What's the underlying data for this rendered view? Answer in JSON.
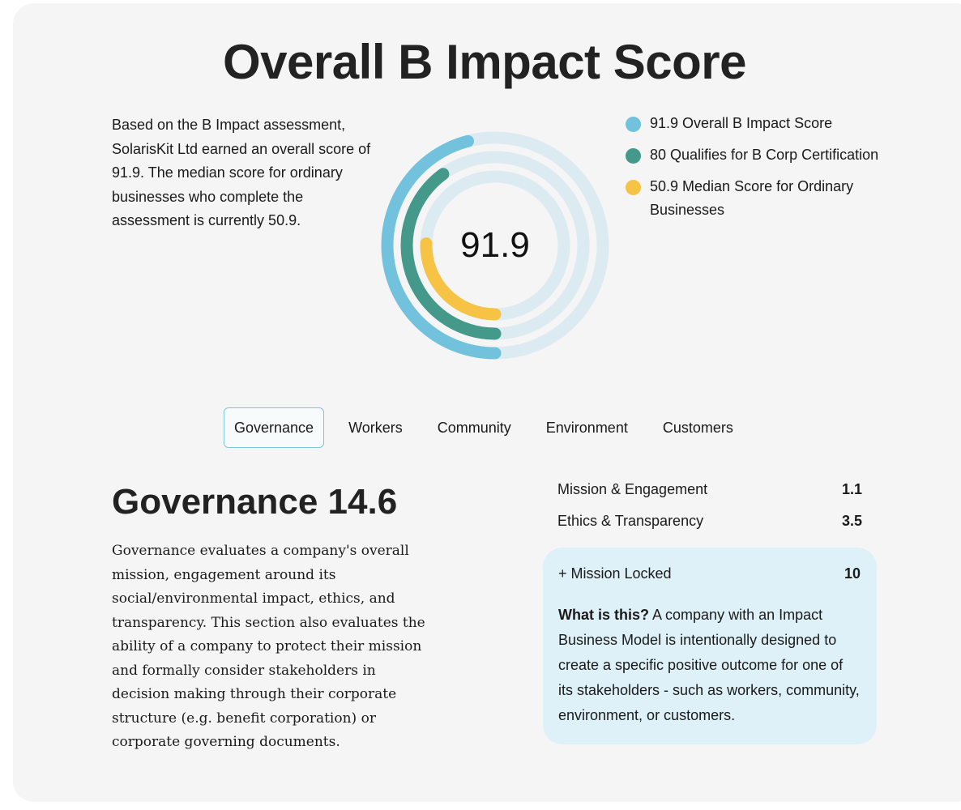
{
  "page": {
    "title": "Overall B Impact Score"
  },
  "intro": {
    "text": "Based on the B Impact assessment, SolarisKit Ltd earned an overall score of 91.9. The median score for ordinary businesses who complete the assessment is currently 50.9."
  },
  "score": {
    "value": "91.9"
  },
  "chart_data": {
    "type": "radial-bar",
    "scale_max": 200,
    "series": [
      {
        "name": "91.9 Overall B Impact Score",
        "value": 91.9,
        "color": "#72c2de"
      },
      {
        "name": "80 Qualifies for B Corp Certification",
        "value": 80,
        "color": "#45998a"
      },
      {
        "name": "50.9 Median Score for Ordinary Businesses",
        "value": 50.9,
        "color": "#f6c344"
      }
    ],
    "track_color": "#dcebf1"
  },
  "legend": {
    "items": [
      {
        "label": "91.9 Overall B Impact Score",
        "color": "#72c2de"
      },
      {
        "label": "80 Qualifies for B Corp Certification",
        "color": "#45998a"
      },
      {
        "label": "50.9 Median Score for Ordinary Businesses",
        "color": "#f6c344"
      }
    ]
  },
  "tabs": {
    "active": "Governance",
    "items": [
      {
        "label": "Governance"
      },
      {
        "label": "Workers"
      },
      {
        "label": "Community"
      },
      {
        "label": "Environment"
      },
      {
        "label": "Customers"
      }
    ]
  },
  "section": {
    "title": "Governance 14.6",
    "description": "Governance evaluates a company's overall mission, engagement around its social/environmental impact, ethics, and transparency. This section also evaluates the ability of a company to protect their mission and formally consider stakeholders in decision making through their corporate structure (e.g. benefit corporation) or corporate governing documents.",
    "metrics": [
      {
        "label": "Mission & Engagement",
        "value": "1.1"
      },
      {
        "label": "Ethics & Transparency",
        "value": "3.5"
      }
    ],
    "mission_locked": {
      "label": "+ Mission Locked",
      "value": "10",
      "question": "What is this?",
      "explanation": "A company with an Impact Business Model is intentionally designed to create a specific positive outcome for one of its stakeholders - such as workers, community, environment, or customers."
    }
  }
}
